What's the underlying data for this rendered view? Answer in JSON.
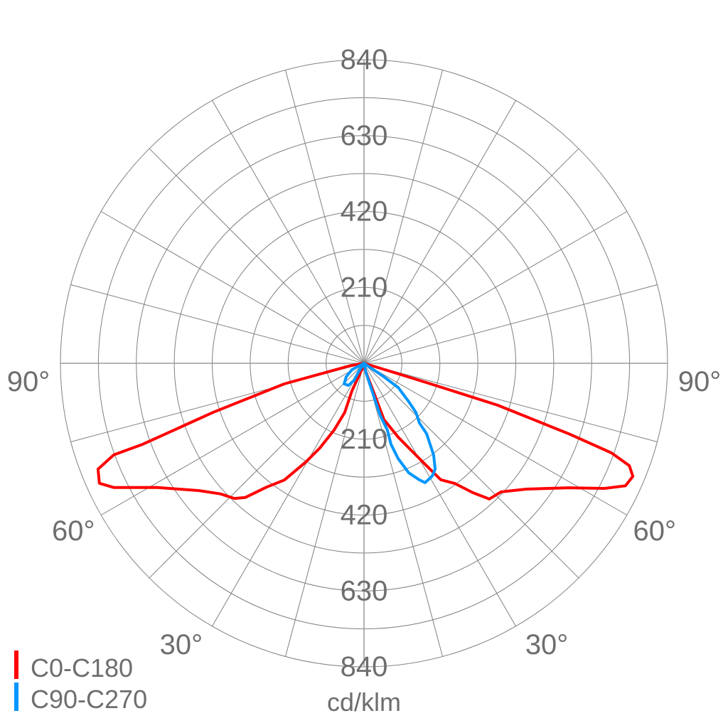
{
  "chart_data": {
    "type": "polar-line",
    "unit_label": "cd/klm",
    "rmax": 840,
    "ring_step": 105,
    "radial_labels": [
      "210",
      "420",
      "630",
      "840"
    ],
    "radial_label_values": [
      210,
      420,
      630,
      840
    ],
    "angle_step_deg": 15,
    "angle_labels": [
      {
        "text": "90°",
        "angle": -90
      },
      {
        "text": "90°",
        "angle": 90
      },
      {
        "text": "60°",
        "angle": -60
      },
      {
        "text": "60°",
        "angle": 60
      },
      {
        "text": "30°",
        "angle": -33
      },
      {
        "text": "30°",
        "angle": 33
      }
    ],
    "grid": true,
    "legend_position": "bottom-left",
    "series": [
      {
        "name": "C0-C180",
        "color": "#ff0000",
        "points": [
          [
            0,
            10
          ],
          [
            -20,
            20
          ],
          [
            -23.6,
            84
          ],
          [
            -21.4,
            146
          ],
          [
            -24.1,
            202
          ],
          [
            -27.5,
            264
          ],
          [
            -30.5,
            317
          ],
          [
            -34.3,
            391
          ],
          [
            -38.2,
            436
          ],
          [
            -41.5,
            496
          ],
          [
            -43.8,
            518
          ],
          [
            -47.7,
            537
          ],
          [
            -52.3,
            576
          ],
          [
            -59.1,
            669
          ],
          [
            -63.6,
            773
          ],
          [
            -65.6,
            804
          ],
          [
            -68.3,
            792
          ],
          [
            -69.9,
            737
          ],
          [
            -69.9,
            653
          ],
          [
            -72.0,
            438
          ],
          [
            -75.5,
            228
          ],
          [
            -80,
            40
          ],
          [
            0,
            0
          ],
          [
            73,
            74
          ],
          [
            72.9,
            181
          ],
          [
            72.6,
            388
          ],
          [
            71.0,
            599
          ],
          [
            70.1,
            728
          ],
          [
            68.9,
            787
          ],
          [
            67.2,
            807
          ],
          [
            64.9,
            799
          ],
          [
            62.5,
            750
          ],
          [
            58.7,
            663
          ],
          [
            52.2,
            568
          ],
          [
            46.8,
            520
          ],
          [
            42.7,
            511
          ],
          [
            40.1,
            468
          ],
          [
            37.1,
            417
          ],
          [
            33.4,
            386
          ],
          [
            31.4,
            332
          ],
          [
            28.7,
            278
          ],
          [
            24.8,
            225
          ],
          [
            19.5,
            165
          ],
          [
            18.4,
            81
          ],
          [
            0,
            10
          ]
        ]
      },
      {
        "name": "C90-C270",
        "color": "#0096ff",
        "points": [
          [
            0,
            0
          ],
          [
            -62,
            38
          ],
          [
            -52.8,
            62
          ],
          [
            -44,
            79
          ],
          [
            -35.4,
            75
          ],
          [
            -30.3,
            55
          ],
          [
            -32.5,
            26
          ],
          [
            0,
            0
          ],
          [
            55.8,
            67
          ],
          [
            54.7,
            116
          ],
          [
            49.4,
            163
          ],
          [
            46.6,
            198
          ],
          [
            42.9,
            225
          ],
          [
            41.6,
            261
          ],
          [
            39.2,
            289
          ],
          [
            37.2,
            319
          ],
          [
            33.9,
            353
          ],
          [
            31.1,
            365
          ],
          [
            27.1,
            371
          ],
          [
            25.4,
            357
          ],
          [
            22.2,
            327
          ],
          [
            19.7,
            280
          ],
          [
            18.4,
            236
          ],
          [
            19.3,
            196
          ],
          [
            17.3,
            152
          ],
          [
            16.5,
            90
          ],
          [
            12,
            28
          ],
          [
            0,
            0
          ]
        ]
      }
    ]
  }
}
